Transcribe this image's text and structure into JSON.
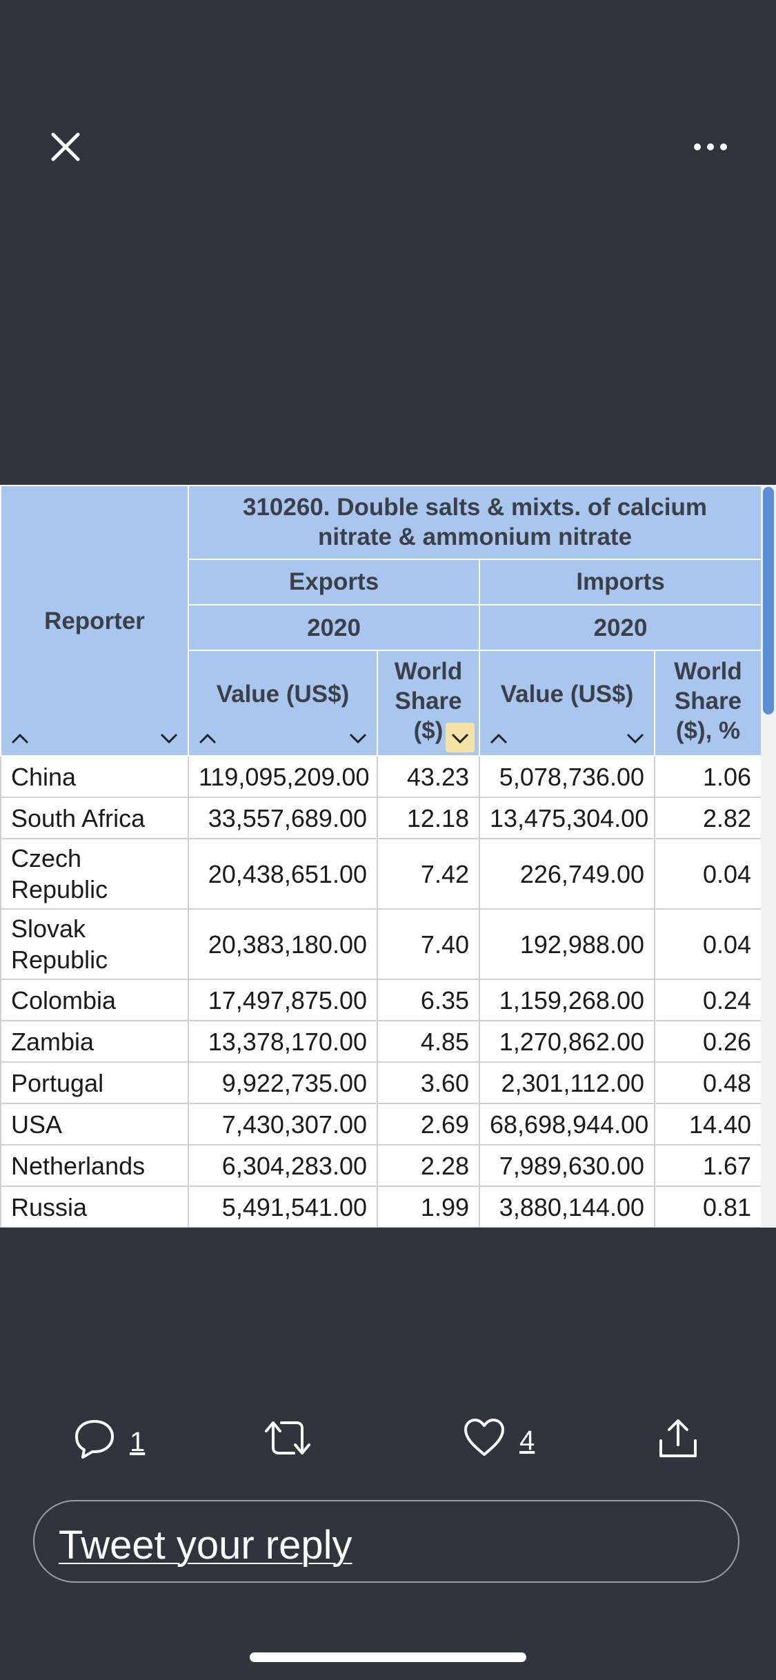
{
  "toolbar": {
    "close_icon": "close-icon",
    "more_icon": "more-horizontal-icon"
  },
  "table": {
    "reporter_header": "Reporter",
    "product_header": "310260. Double salts & mixts. of calcium nitrate & ammonium nitrate",
    "exports_header": "Exports",
    "imports_header": "Imports",
    "exports_year": "2020",
    "imports_year": "2020",
    "col_value": "Value (US$)",
    "col_share_exports": "World Share ($)",
    "col_value_imports": "Value (US$)",
    "col_share_imports": "World Share ($), %",
    "sort_up": "^",
    "sort_down": "⌄",
    "active_sort": "exports-share-desc",
    "rows": [
      {
        "reporter": "China",
        "exp_value": "119,095,209.00",
        "exp_share": "43.23",
        "imp_value": "5,078,736.00",
        "imp_share": "1.06"
      },
      {
        "reporter": "South Africa",
        "exp_value": "33,557,689.00",
        "exp_share": "12.18",
        "imp_value": "13,475,304.00",
        "imp_share": "2.82"
      },
      {
        "reporter": "Czech Republic",
        "exp_value": "20,438,651.00",
        "exp_share": "7.42",
        "imp_value": "226,749.00",
        "imp_share": "0.04"
      },
      {
        "reporter": "Slovak Republic",
        "exp_value": "20,383,180.00",
        "exp_share": "7.40",
        "imp_value": "192,988.00",
        "imp_share": "0.04"
      },
      {
        "reporter": "Colombia",
        "exp_value": "17,497,875.00",
        "exp_share": "6.35",
        "imp_value": "1,159,268.00",
        "imp_share": "0.24"
      },
      {
        "reporter": "Zambia",
        "exp_value": "13,378,170.00",
        "exp_share": "4.85",
        "imp_value": "1,270,862.00",
        "imp_share": "0.26"
      },
      {
        "reporter": "Portugal",
        "exp_value": "9,922,735.00",
        "exp_share": "3.60",
        "imp_value": "2,301,112.00",
        "imp_share": "0.48"
      },
      {
        "reporter": "USA",
        "exp_value": "7,430,307.00",
        "exp_share": "2.69",
        "imp_value": "68,698,944.00",
        "imp_share": "14.40"
      },
      {
        "reporter": "Netherlands",
        "exp_value": "6,304,283.00",
        "exp_share": "2.28",
        "imp_value": "7,989,630.00",
        "imp_share": "1.67"
      },
      {
        "reporter": "Russia",
        "exp_value": "5,491,541.00",
        "exp_share": "1.99",
        "imp_value": "3,880,144.00",
        "imp_share": "0.81"
      }
    ]
  },
  "actions": {
    "reply_count": "1",
    "like_count": "4"
  },
  "reply": {
    "placeholder": "Tweet your reply"
  },
  "colors": {
    "background": "#2f343d",
    "table_header": "#a9c6ee",
    "active_sort": "#f4e3a4"
  }
}
